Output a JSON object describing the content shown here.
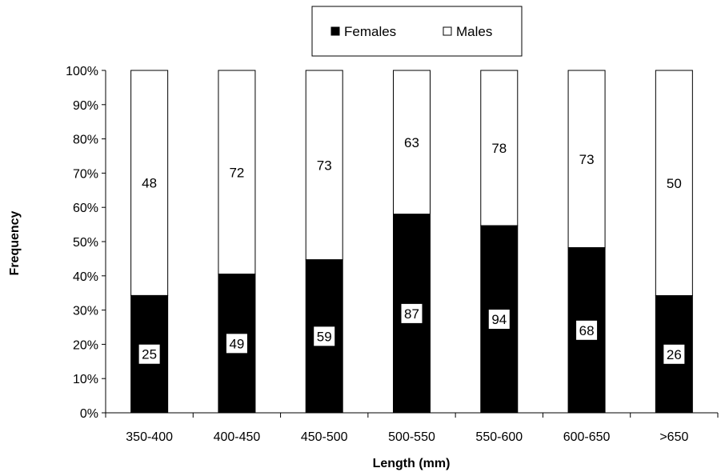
{
  "chart_data": {
    "type": "bar",
    "stacked": true,
    "normalized": true,
    "title": "",
    "xlabel": "Length (mm)",
    "ylabel": "Frequency",
    "categories": [
      "350-400",
      "400-450",
      "450-500",
      "500-550",
      "550-600",
      "600-650",
      ">650"
    ],
    "series": [
      {
        "name": "Females",
        "values": [
          25,
          49,
          59,
          87,
          94,
          68,
          26
        ],
        "color": "#000000"
      },
      {
        "name": "Males",
        "values": [
          48,
          72,
          73,
          63,
          78,
          73,
          50
        ],
        "color": "#ffffff"
      }
    ],
    "ylim": [
      0,
      100
    ],
    "y_ticks": [
      "0%",
      "10%",
      "20%",
      "30%",
      "40%",
      "50%",
      "60%",
      "70%",
      "80%",
      "90%",
      "100%"
    ],
    "grid": false,
    "legend_position": "top-center"
  }
}
